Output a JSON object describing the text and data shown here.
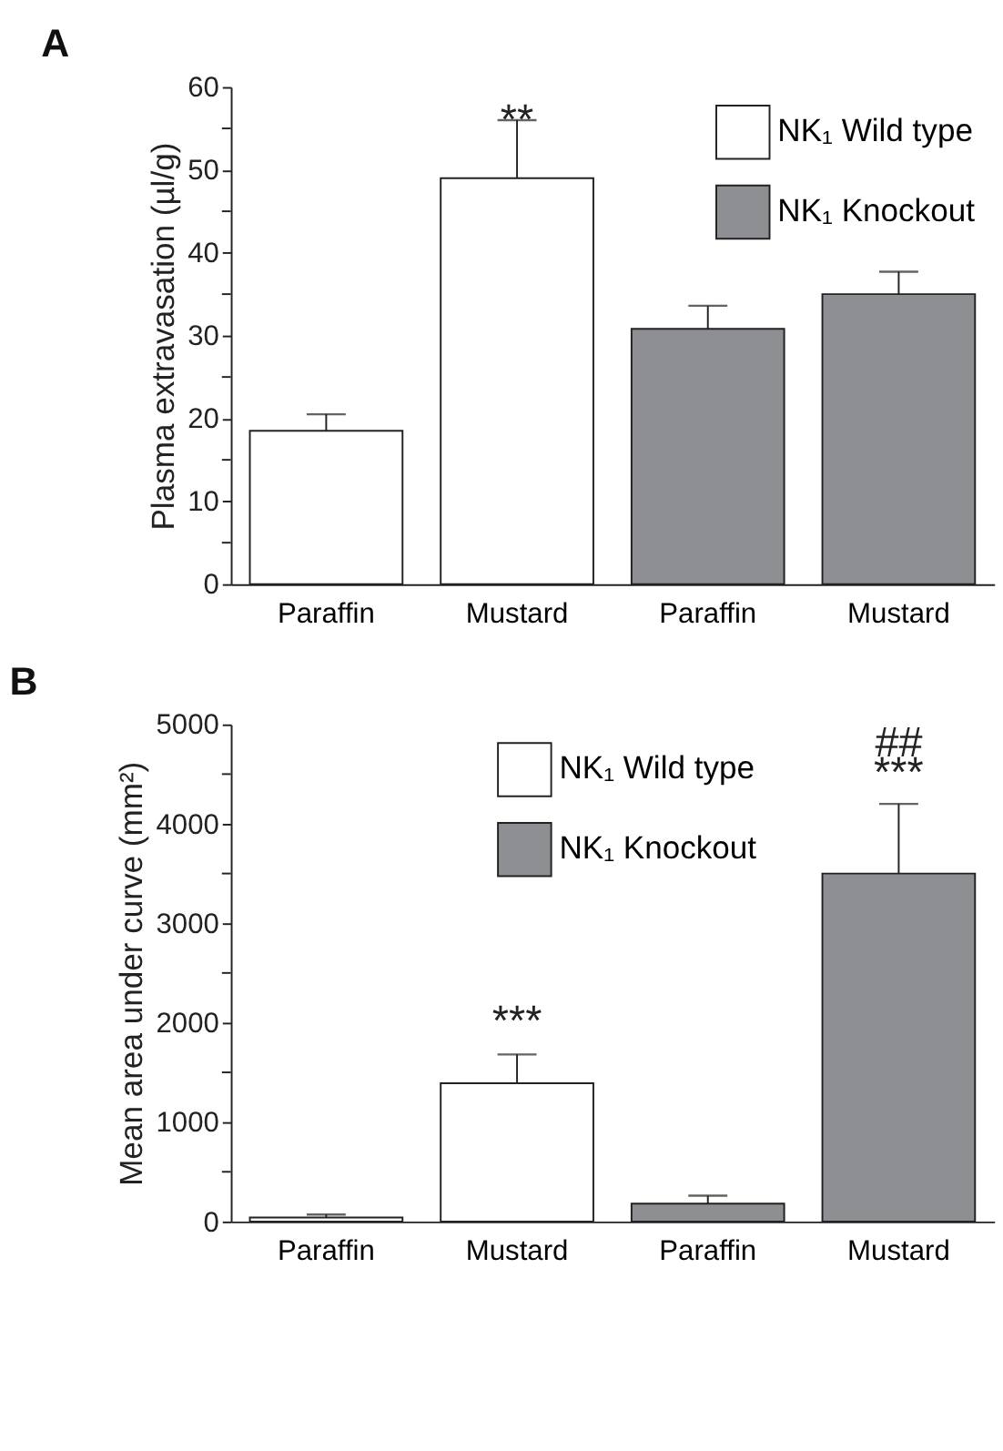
{
  "chart_data": [
    {
      "type": "bar",
      "title": "A",
      "ylabel": "Plasma extravasation (µl/g)",
      "categories": [
        "Paraffin",
        "Mustard",
        "Paraffin",
        "Mustard"
      ],
      "series": [
        {
          "name": "NK₁ Wild type",
          "color": "#ffffff",
          "values": [
            18.5,
            49,
            null,
            null
          ],
          "errors": [
            [
              18.5,
              20.5
            ],
            [
              49,
              56
            ],
            null,
            null
          ]
        },
        {
          "name": "NK₁ Knockout",
          "color": "#8e8f93",
          "values": [
            null,
            null,
            30.8,
            35
          ],
          "errors": [
            null,
            null,
            [
              30.8,
              33.6
            ],
            [
              35,
              37.7
            ]
          ]
        }
      ],
      "ylim": [
        0,
        60
      ],
      "yticks": [
        0,
        {
          "value": 5,
          "label": null
        },
        10,
        {
          "value": 15,
          "label": null
        },
        20,
        {
          "value": 25,
          "label": null
        },
        30,
        {
          "value": 35,
          "label": null
        },
        40,
        {
          "value": 45,
          "label": null
        },
        50,
        {
          "value": 55,
          "label": null
        },
        60
      ],
      "legend": "top right",
      "annotations": [
        "**"
      ]
    },
    {
      "type": "bar",
      "title": "B",
      "ylabel": "Mean area under curve (mm²)",
      "categories": [
        "Paraffin",
        "Mustard",
        "Paraffin",
        "Mustard"
      ],
      "series": [
        {
          "name": "NK₁ Wild type",
          "color": "#ffffff",
          "values": [
            40,
            1390,
            null,
            null
          ],
          "errors": [
            [
              40,
              70
            ],
            [
              1390,
              1680
            ],
            null,
            null
          ]
        },
        {
          "name": "NK₁ Knockout",
          "color": "#8e8f93",
          "values": [
            null,
            null,
            180,
            3500
          ],
          "errors": [
            null,
            null,
            [
              180,
              260
            ],
            [
              3500,
              4200
            ]
          ]
        }
      ],
      "ylim": [
        0,
        5000
      ],
      "yticks": [
        0,
        {
          "value": 500,
          "label": null
        },
        1000,
        {
          "value": 1500,
          "label": null
        },
        2000,
        {
          "value": 2500,
          "label": null
        },
        3000,
        {
          "value": 3500,
          "label": null
        },
        4000,
        {
          "value": 4500,
          "label": null
        },
        5000
      ],
      "legend": "top left",
      "annotations": [
        "***",
        "***",
        "##"
      ]
    }
  ]
}
